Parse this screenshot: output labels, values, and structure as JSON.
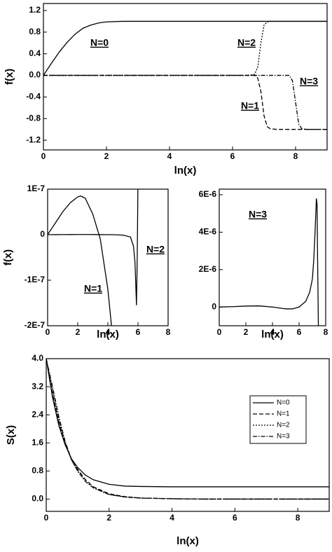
{
  "chart_data": [
    {
      "type": "line",
      "xlabel": "ln(x)",
      "ylabel": "f(x)",
      "x": [
        0,
        0.25,
        0.5,
        0.75,
        1,
        1.25,
        1.5,
        1.75,
        2,
        2.5,
        3,
        4,
        5,
        6,
        6.5,
        6.7,
        6.8,
        6.9,
        7.0,
        7.1,
        7.2,
        7.4,
        7.6,
        7.8,
        7.9,
        8.0,
        8.1,
        8.2,
        8.4,
        8.6,
        9
      ],
      "series": [
        {
          "name": "N=0",
          "color": "#000",
          "dash": "solid",
          "values": [
            0,
            0.22,
            0.43,
            0.61,
            0.76,
            0.87,
            0.93,
            0.97,
            0.99,
            1,
            1,
            1,
            1,
            1,
            1,
            1,
            1,
            1,
            1,
            1,
            1,
            1,
            1,
            1,
            1,
            1,
            1,
            1,
            1,
            1,
            1
          ]
        },
        {
          "name": "N=1",
          "color": "#000",
          "dash": "dashed",
          "values": [
            0,
            0,
            0,
            0,
            0,
            0,
            0,
            0,
            0,
            0,
            0,
            0,
            0,
            0,
            0,
            0,
            -0.05,
            -0.3,
            -0.75,
            -0.95,
            -0.99,
            -1,
            -1,
            -1,
            -1,
            -1,
            -1,
            -1,
            -1,
            -1,
            -1
          ]
        },
        {
          "name": "N=2",
          "color": "#000",
          "dash": "dotted",
          "values": [
            0,
            0,
            0,
            0,
            0,
            0,
            0,
            0,
            0,
            0,
            0,
            0,
            0,
            0,
            0,
            0.02,
            0.15,
            0.6,
            0.93,
            0.99,
            1,
            1,
            1,
            1,
            1,
            1,
            1,
            1,
            1,
            1,
            1
          ]
        },
        {
          "name": "N=3",
          "color": "#000",
          "dash": "dashdot",
          "values": [
            0,
            0,
            0,
            0,
            0,
            0,
            0,
            0,
            0,
            0,
            0,
            0,
            0,
            0,
            0,
            0,
            0,
            0,
            0,
            0,
            0,
            0,
            0,
            0,
            -0.1,
            -0.5,
            -0.9,
            -0.99,
            -1,
            -1,
            -1
          ]
        }
      ],
      "xlim": [
        0,
        9
      ],
      "xticks": [
        0,
        2,
        4,
        6,
        8
      ],
      "ylim": [
        -1.38,
        1.33
      ],
      "yticks": [
        -1.2,
        -0.8,
        -0.4,
        {
          "value": 0,
          "label": "0.0"
        },
        0.4,
        0.8,
        1.2
      ]
    },
    {
      "type": "line",
      "xlabel": "ln(x)",
      "ylabel": "f(x)",
      "x": [
        0,
        0.5,
        1,
        1.5,
        2,
        2.2,
        2.5,
        3,
        3.5,
        4,
        4.3,
        5,
        5.5,
        5.7,
        5.8,
        5.9,
        5.95,
        6.0
      ],
      "series": [
        {
          "name": "N=1",
          "color": "#000",
          "dash": "solid",
          "values": [
            0,
            2.5e-08,
            5e-08,
            7e-08,
            8.3e-08,
            8.5e-08,
            8e-08,
            4.5e-08,
            -1e-08,
            -1.2e-07,
            -2.2e-07,
            null,
            null,
            null,
            null,
            null,
            null,
            null
          ]
        },
        {
          "name": "N=2",
          "color": "#000",
          "dash": "solid",
          "values": [
            0,
            1e-10,
            2e-10,
            3e-10,
            4e-10,
            4e-10,
            4e-10,
            3e-10,
            1e-10,
            0,
            0,
            -1e-09,
            -5e-09,
            -2.5e-08,
            -6e-08,
            -1.55e-07,
            -5e-08,
            1.2e-07
          ]
        }
      ],
      "xlim": [
        0,
        8
      ],
      "xticks": [
        0,
        2,
        4,
        6,
        8
      ],
      "ylim": [
        -2e-07,
        1e-07
      ],
      "yticks": [
        {
          "value": -2e-07,
          "label": "-2E-7"
        },
        {
          "value": -1e-07,
          "label": "-1E-7"
        },
        0,
        {
          "value": 1e-07,
          "label": "1E-7"
        }
      ]
    },
    {
      "type": "line",
      "xlabel": "ln(x)",
      "x": [
        0,
        1,
        2,
        3,
        4,
        5,
        5.5,
        6,
        6.5,
        6.8,
        7,
        7.1,
        7.2,
        7.3,
        7.35,
        7.4,
        7.45
      ],
      "series": [
        {
          "name": "N=3",
          "color": "#000",
          "dash": "solid",
          "values": [
            0,
            2e-08,
            5e-08,
            6e-08,
            0,
            -1e-07,
            -1e-07,
            0,
            3e-07,
            8e-07,
            1.5e-06,
            2.5e-06,
            4e-06,
            5.8e-06,
            5.5e-06,
            2e-06,
            -1e-06
          ]
        }
      ],
      "xlim": [
        0,
        8
      ],
      "xticks": [
        0,
        2,
        4,
        6,
        8
      ],
      "ylim": [
        -1e-06,
        6.3e-06
      ],
      "yticks": [
        0,
        {
          "value": 2e-06,
          "label": "2E-6"
        },
        {
          "value": 4e-06,
          "label": "4E-6"
        },
        {
          "value": 6e-06,
          "label": "6E-6"
        }
      ]
    },
    {
      "type": "line",
      "xlabel": "ln(x)",
      "ylabel": "S(x)",
      "legend": "upper right",
      "x": [
        0,
        0.2,
        0.4,
        0.6,
        0.8,
        1,
        1.25,
        1.5,
        2,
        2.5,
        3,
        4,
        5,
        6,
        7,
        8,
        9
      ],
      "series": [
        {
          "name": "N=0",
          "color": "#000",
          "dash": "solid",
          "values": [
            4,
            2.9,
            2.1,
            1.55,
            1.15,
            0.9,
            0.68,
            0.55,
            0.42,
            0.37,
            0.36,
            0.35,
            0.35,
            0.35,
            0.35,
            0.35,
            0.35
          ]
        },
        {
          "name": "N=1",
          "color": "#000",
          "dash": "dashed",
          "values": [
            4,
            3.0,
            2.2,
            1.6,
            1.15,
            0.85,
            0.55,
            0.35,
            0.15,
            0.07,
            0.03,
            0.01,
            0,
            0,
            0,
            0,
            0
          ]
        },
        {
          "name": "N=2",
          "color": "#000",
          "dash": "dotted",
          "values": [
            4,
            3.1,
            2.25,
            1.6,
            1.12,
            0.8,
            0.5,
            0.32,
            0.13,
            0.06,
            0.03,
            0.01,
            0,
            0,
            0,
            0,
            0
          ]
        },
        {
          "name": "N=3",
          "color": "#000",
          "dash": "dashdot",
          "values": [
            4,
            3.2,
            2.35,
            1.65,
            1.13,
            0.8,
            0.5,
            0.32,
            0.13,
            0.06,
            0.03,
            0.01,
            0,
            0,
            0,
            0,
            0
          ]
        }
      ],
      "xlim": [
        0,
        9
      ],
      "xticks": [
        0,
        2,
        4,
        6,
        8
      ],
      "ylim": [
        -0.35,
        4.0
      ],
      "yticks": [
        {
          "value": 0,
          "label": "0.0"
        },
        0.8,
        1.6,
        2.4,
        3.2,
        {
          "value": 4,
          "label": "4.0"
        }
      ]
    }
  ]
}
